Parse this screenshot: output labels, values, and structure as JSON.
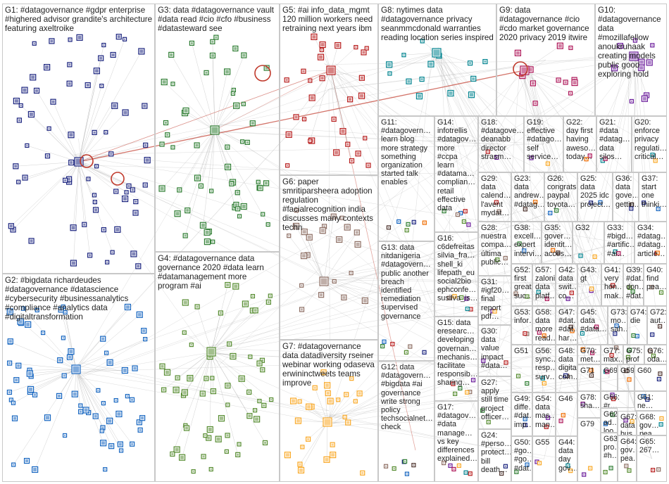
{
  "title": "",
  "groups": [
    {
      "id": "G1",
      "label": "G1: #datagovernance #gdpr enterprise #highered advisor grandite's architecture featuring axeltroike"
    },
    {
      "id": "G2",
      "label": "G2: #bigdata richardeudes #datagovernance #datascience #cybersecurity #businessanalytics #compliance #analytics data #digitaltransformation"
    },
    {
      "id": "G3",
      "label": "G3: data #datagovernance vault #data read #cio #cfo #business #datasteward see"
    },
    {
      "id": "G4",
      "label": "G4: #datagovernance data governance 2020 #data learn #datamanagement more program #ai"
    },
    {
      "id": "G5",
      "label": "G5: #ai info_data_mgmt 120 million workers need retraining next years ibm"
    },
    {
      "id": "G6",
      "label": "G6: paper smritiparsheera adoption regulation #facialrecognition india discusses many contexts techn"
    },
    {
      "id": "G7",
      "label": "G7: #datagovernance data datadiversity rseiner webinar working odaseva erwininctweets teams improve"
    },
    {
      "id": "G8",
      "label": "G8: nytimes data #datagovernance privacy seanmmcdonald warranties reading location series inspired"
    },
    {
      "id": "G9",
      "label": "G9: data #datagovernance #cio #cdo market governance 2020 privacy 2019 itwire"
    },
    {
      "id": "G10",
      "label": "G10: #datagovernance data #mozillafellow anoukruhaak creating models public good exploring hold"
    },
    {
      "id": "G11",
      "label": "G11: #datagovern… learn blog more strategy something organization started talk enables"
    },
    {
      "id": "G12",
      "label": "G12: data #datagovern… #bigdata #ai governance write strong policy techsocialnet… check"
    },
    {
      "id": "G13",
      "label": "G13: data nitdanigeria #datagovern… public another breach identified remediation supervised governance"
    },
    {
      "id": "G14",
      "label": "G14: infotrellis #datagov… more #ccpa learn #datama… complian… retail effective data"
    },
    {
      "id": "G15",
      "label": "G15: data eresearc… developing governan… mechanis… facilitate responsib… sharing…"
    },
    {
      "id": "G16",
      "label": "G16: c6defreitas silvia_fra… shell_ki lifepath_eu social2bio ephconfe… susilva_is…"
    },
    {
      "id": "G17",
      "label": "G17: #datagov… #data manage… vs key differences explained…"
    },
    {
      "id": "G18",
      "label": "G18: #datagove… deanabb director strasm…"
    },
    {
      "id": "G19",
      "label": "G19: effective #datago… self service…"
    },
    {
      "id": "G20",
      "label": "G20: enforce privacy regulati… critical…"
    },
    {
      "id": "G21",
      "label": "G21: #data #datag… data silos…"
    },
    {
      "id": "G22",
      "label": "G22: day first having aweso… today…"
    },
    {
      "id": "G23",
      "label": "G23: data andrew… #datag…"
    },
    {
      "id": "G24",
      "label": "G24: #perso… protect… bill death…"
    },
    {
      "id": "G25",
      "label": "G25: data 2025 idc project…"
    },
    {
      "id": "G26",
      "label": "G26: congrats paypal toyota…"
    },
    {
      "id": "G27",
      "label": "G27: apply still time project officer…"
    },
    {
      "id": "G28",
      "label": "G28: nuestra compa… última public…"
    },
    {
      "id": "G29",
      "label": "G29: data calend… l'avent mydat…"
    },
    {
      "id": "G30",
      "label": "G30: data value impact #data…"
    },
    {
      "id": "G31",
      "label": "G31: #igf20… final report pdf…"
    },
    {
      "id": "G32",
      "label": "G32"
    },
    {
      "id": "G33",
      "label": "G33: #bigd… #artific… #ai…"
    },
    {
      "id": "G34",
      "label": "G34: #datag… #datag… article…"
    },
    {
      "id": "G35",
      "label": "G35: gover… identit… acces…"
    },
    {
      "id": "G36",
      "label": "G36: data gove… gettin…"
    },
    {
      "id": "G37",
      "label": "G37: start one thinki…"
    },
    {
      "id": "G38",
      "label": "G38: excell… expert intervi…"
    },
    {
      "id": "G39",
      "label": "G39: #dat… don… #dat…"
    },
    {
      "id": "G40",
      "label": "G40: find pea…"
    },
    {
      "id": "G41",
      "label": "G41: very hon… mak…"
    },
    {
      "id": "G42",
      "label": "G42: data swit… co…"
    },
    {
      "id": "G43",
      "label": "G43: gt"
    },
    {
      "id": "G44",
      "label": "G44: data day gov…"
    },
    {
      "id": "G45",
      "label": "G45: data #data…"
    },
    {
      "id": "G46",
      "label": "G46"
    },
    {
      "id": "G47",
      "label": "G47: #dat… #dat… har…"
    },
    {
      "id": "G48",
      "label": "G48: data digital com…"
    },
    {
      "id": "G49",
      "label": "G49: diffe… #dat… imp…"
    },
    {
      "id": "G50",
      "label": "G50: #go… #go… #dat…"
    },
    {
      "id": "G51",
      "label": "G51"
    },
    {
      "id": "G52",
      "label": "G52: first great suc…"
    },
    {
      "id": "G53",
      "label": "G53: infor…"
    },
    {
      "id": "G54",
      "label": "G54: data mas… man…"
    },
    {
      "id": "G55",
      "label": "G55"
    },
    {
      "id": "G56",
      "label": "G56: sync… resp… surv…"
    },
    {
      "id": "G57",
      "label": "G57: zaloni data platf…"
    },
    {
      "id": "G58",
      "label": "G58: data more read…"
    },
    {
      "id": "G59",
      "label": "G59"
    },
    {
      "id": "G60",
      "label": "G60"
    },
    {
      "id": "G61",
      "label": "G61: ne… cl… #t…"
    },
    {
      "id": "G62",
      "label": "G62: ad… loo…"
    },
    {
      "id": "G63",
      "label": "G63: pro… #h…"
    },
    {
      "id": "G64",
      "label": "G64: gov… pea…"
    },
    {
      "id": "G65",
      "label": "G65: 267…"
    },
    {
      "id": "G66",
      "label": "G66: #r… #t… 20…"
    },
    {
      "id": "G67",
      "label": "G67: data bus…"
    },
    {
      "id": "G68",
      "label": "G68: gov… pea…"
    },
    {
      "id": "G69",
      "label": "G69"
    },
    {
      "id": "G70",
      "label": "G70: met…"
    },
    {
      "id": "G71",
      "label": "G71"
    },
    {
      "id": "G72",
      "label": "G72: aut…"
    },
    {
      "id": "G73",
      "label": "G73: mo… sah…"
    },
    {
      "id": "G74",
      "label": "G74: die"
    },
    {
      "id": "G75",
      "label": "G75: prof"
    },
    {
      "id": "G76",
      "label": "G76: oda…"
    },
    {
      "id": "G77",
      "label": "G77: max…"
    },
    {
      "id": "G78",
      "label": "G78: sha…"
    },
    {
      "id": "G79",
      "label": "G79"
    }
  ],
  "colors": {
    "edge": "#9a9a9a",
    "highlight_edge": "#c0392b",
    "box_border": "#c8c8c8",
    "label_text": "#1f1f1f",
    "cluster_palette": [
      "#1a237e",
      "#1565c0",
      "#2e7d32",
      "#558b2f",
      "#8d6e63",
      "#b71c1c",
      "#6a1b9a",
      "#f9a825",
      "#00838f",
      "#ad1457",
      "#ef6c00",
      "#4e342e"
    ]
  }
}
